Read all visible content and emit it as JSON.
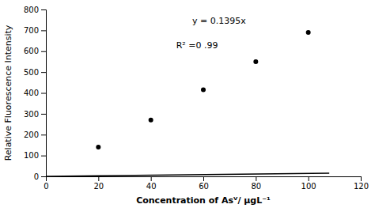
{
  "chart_data": {
    "type": "scatter",
    "xlabel": "Concentration of Asⱽ/ μgL⁻¹",
    "ylabel": "Relative Fluorescence Intensity",
    "annotations": [
      "y = 0.1395x",
      "R² =0 .99"
    ],
    "series": [
      {
        "type": "line",
        "color": "#000000",
        "x": [
          0,
          108
        ],
        "values": [
          0,
          15.066
        ]
      },
      {
        "type": "scatter",
        "color": "#000000",
        "x": [
          20,
          40,
          60,
          80,
          100
        ],
        "values": [
          140,
          270,
          415,
          550,
          690
        ]
      }
    ],
    "xlim": [
      0,
      120
    ],
    "ylim": [
      0,
      800
    ],
    "xticks": [
      0,
      20,
      40,
      60,
      80,
      100,
      120
    ],
    "yticks": [
      0,
      100,
      200,
      300,
      400,
      500,
      600,
      700,
      800
    ],
    "grid": false
  }
}
